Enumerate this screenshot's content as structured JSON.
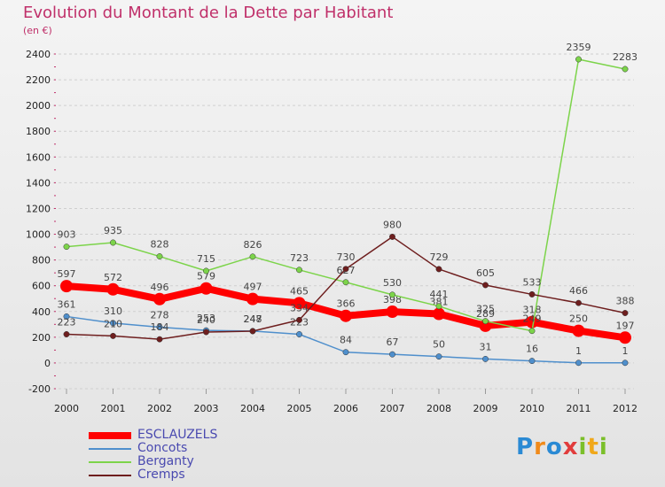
{
  "title": "Evolution du Montant de la Dette par Habitant",
  "subtitle": "(en €)",
  "logo": "Proxiti",
  "chart_data": {
    "type": "line",
    "title": "Evolution du Montant de la Dette par Habitant",
    "ylabel": "(en €)",
    "ylim": [
      -200,
      2400
    ],
    "yticks": [
      -200,
      0,
      200,
      400,
      600,
      800,
      1000,
      1200,
      1400,
      1600,
      1800,
      2000,
      2200,
      2400
    ],
    "categories": [
      "2000",
      "2001",
      "2002",
      "2003",
      "2004",
      "2005",
      "2006",
      "2007",
      "2008",
      "2009",
      "2010",
      "2011",
      "2012"
    ],
    "series": [
      {
        "name": "ESCLAUZELS",
        "color": "#ff0000",
        "values": [
          597,
          572,
          496,
          579,
          497,
          465,
          366,
          398,
          381,
          289,
          318,
          250,
          197
        ]
      },
      {
        "name": "Concots",
        "color": "#4f8fcc",
        "values": [
          361,
          310,
          278,
          253,
          248,
          223,
          84,
          67,
          50,
          31,
          16,
          1,
          1
        ]
      },
      {
        "name": "Berganty",
        "color": "#7cd44a",
        "values": [
          903,
          935,
          828,
          715,
          826,
          723,
          627,
          530,
          441,
          325,
          249,
          2359,
          2283
        ]
      },
      {
        "name": "Cremps",
        "color": "#6e1e1e",
        "values": [
          223,
          210,
          184,
          240,
          247,
          334,
          730,
          980,
          729,
          605,
          533,
          466,
          388
        ]
      }
    ]
  }
}
